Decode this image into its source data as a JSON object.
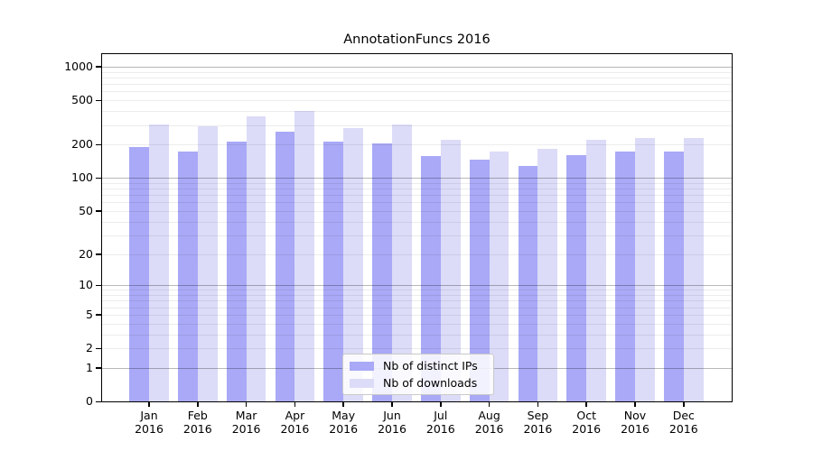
{
  "title": "AnnotationFuncs 2016",
  "legend": {
    "items": [
      {
        "label": "Nb of distinct IPs",
        "color": "#a9a9f7"
      },
      {
        "label": "Nb of downloads",
        "color": "#dcdcf8"
      }
    ]
  },
  "chart_data": {
    "type": "bar",
    "title": "AnnotationFuncs 2016",
    "categories": [
      "Jan 2016",
      "Feb 2016",
      "Mar 2016",
      "Apr 2016",
      "May 2016",
      "Jun 2016",
      "Jul 2016",
      "Aug 2016",
      "Sep 2016",
      "Oct 2016",
      "Nov 2016",
      "Dec 2016"
    ],
    "series": [
      {
        "name": "Nb of distinct IPs",
        "color": "#a9a9f7",
        "values": [
          191,
          173,
          214,
          261,
          211,
          204,
          158,
          147,
          128,
          159,
          172,
          172
        ]
      },
      {
        "name": "Nb of downloads",
        "color": "#dcdcf8",
        "values": [
          301,
          294,
          357,
          399,
          281,
          305,
          221,
          172,
          184,
          222,
          230,
          228
        ]
      }
    ],
    "xlabel": "",
    "ylabel": "",
    "y_scale": "log(1+v)",
    "y_tick_labels": [
      "0",
      "1",
      "2",
      "5",
      "10",
      "20",
      "50",
      "100",
      "200",
      "500",
      "1000"
    ],
    "y_ticks": [
      0,
      1,
      2,
      5,
      10,
      20,
      50,
      100,
      200,
      500,
      1000
    ],
    "ylim": [
      0,
      1300
    ],
    "grid": "horizontal, minor light + decade darker, drawn over bars",
    "legend_position": "lower center"
  }
}
